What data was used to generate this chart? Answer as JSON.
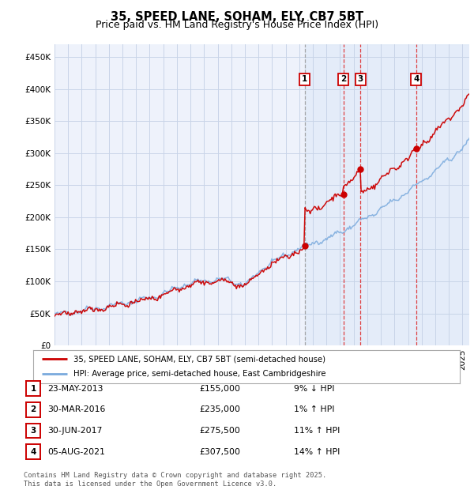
{
  "title": "35, SPEED LANE, SOHAM, ELY, CB7 5BT",
  "subtitle": "Price paid vs. HM Land Registry's House Price Index (HPI)",
  "ylabel_ticks": [
    "£0",
    "£50K",
    "£100K",
    "£150K",
    "£200K",
    "£250K",
    "£300K",
    "£350K",
    "£400K",
    "£450K"
  ],
  "ytick_values": [
    0,
    50000,
    100000,
    150000,
    200000,
    250000,
    300000,
    350000,
    400000,
    450000
  ],
  "ylim": [
    0,
    470000
  ],
  "xlim_start": 1995.0,
  "xlim_end": 2025.5,
  "background_color": "#ffffff",
  "plot_bg_color": "#eef2fb",
  "grid_color": "#c8d4e8",
  "legend_entries": [
    "35, SPEED LANE, SOHAM, ELY, CB7 5BT (semi-detached house)",
    "HPI: Average price, semi-detached house, East Cambridgeshire"
  ],
  "legend_colors": [
    "#cc0000",
    "#7aaadd"
  ],
  "transaction_markers": [
    {
      "id": 1,
      "date": 2013.39,
      "price": 155000,
      "label": "23-MAY-2013",
      "price_str": "£155,000",
      "pct": "9% ↓ HPI",
      "vline_style": "dashed_gray"
    },
    {
      "id": 2,
      "date": 2016.25,
      "price": 235000,
      "label": "30-MAR-2016",
      "price_str": "£235,000",
      "pct": "1% ↑ HPI",
      "vline_style": "dashed_red"
    },
    {
      "id": 3,
      "date": 2017.5,
      "price": 275500,
      "label": "30-JUN-2017",
      "price_str": "£275,500",
      "pct": "11% ↑ HPI",
      "vline_style": "dashed_red"
    },
    {
      "id": 4,
      "date": 2021.59,
      "price": 307500,
      "label": "05-AUG-2021",
      "price_str": "£307,500",
      "pct": "14% ↑ HPI",
      "vline_style": "dashed_red"
    }
  ],
  "footnote": "Contains HM Land Registry data © Crown copyright and database right 2025.\nThis data is licensed under the Open Government Licence v3.0.",
  "title_fontsize": 10.5,
  "subtitle_fontsize": 9,
  "axis_fontsize": 7.5,
  "marker_box_color": "#cc0000",
  "shaded_color": "#dce8f8",
  "shaded_start": 2013.39
}
